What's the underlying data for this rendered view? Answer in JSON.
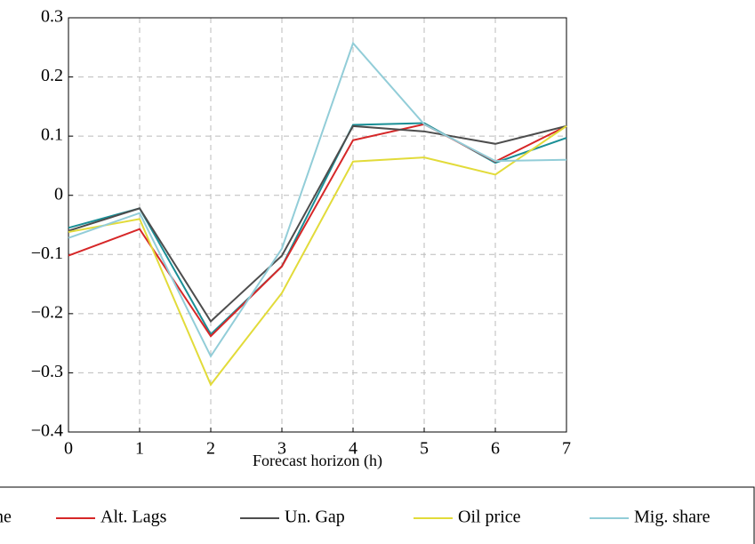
{
  "chart_data": {
    "type": "line",
    "x_label": "Forecast horizon (h)",
    "x": [
      0,
      1,
      2,
      3,
      4,
      5,
      6,
      7
    ],
    "series": [
      {
        "name": "ne",
        "color": "#1a8f96",
        "values": [
          -0.055,
          -0.022,
          -0.235,
          -0.12,
          0.119,
          0.122,
          0.055,
          0.097
        ]
      },
      {
        "name": "Alt. Lags",
        "color": "#d62728",
        "values": [
          -0.102,
          -0.057,
          -0.238,
          -0.12,
          0.093,
          0.12,
          0.057,
          0.117
        ]
      },
      {
        "name": "Un. Gap",
        "color": "#4d4d4d",
        "values": [
          -0.06,
          -0.022,
          -0.213,
          -0.102,
          0.117,
          0.108,
          0.087,
          0.117
        ]
      },
      {
        "name": "Oil price",
        "color": "#e2db3a",
        "values": [
          -0.062,
          -0.04,
          -0.32,
          -0.165,
          0.057,
          0.064,
          0.035,
          0.117
        ]
      },
      {
        "name": "Mig. share",
        "color": "#92cdd8",
        "values": [
          -0.072,
          -0.03,
          -0.272,
          -0.09,
          0.257,
          0.12,
          0.058,
          0.06
        ]
      }
    ],
    "xlim": [
      0,
      7
    ],
    "xticks": [
      0,
      1,
      2,
      3,
      4,
      5,
      6,
      7
    ],
    "ylim": [
      -0.4,
      0.3
    ],
    "yticks": [
      {
        "value": -0.4,
        "label": "−0.4"
      },
      {
        "value": -0.3,
        "label": "−0.3"
      },
      {
        "value": -0.2,
        "label": "−0.2"
      },
      {
        "value": -0.1,
        "label": "−0.1"
      },
      0,
      0.1,
      0.2,
      0.3
    ],
    "grid": true
  }
}
